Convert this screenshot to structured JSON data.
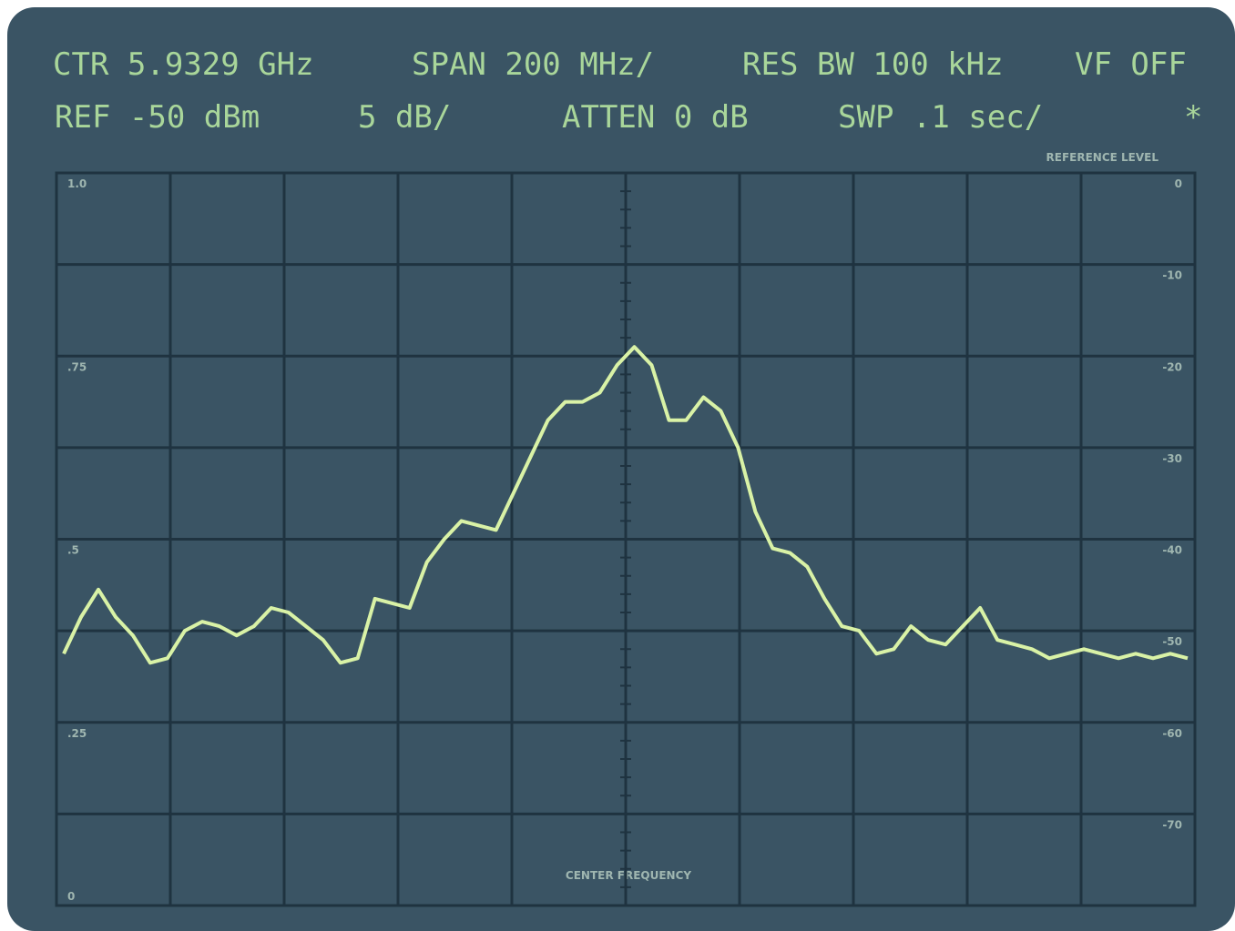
{
  "chart_data": {
    "type": "line",
    "header": [
      [
        "CTR 5.9329 GHz",
        "SPAN 200 MHz/",
        "RES BW 100 kHz",
        "VF OFF"
      ],
      [
        "REF -50 dBm",
        "5 dB/",
        "ATTEN 0 dB",
        "SWP .1 sec/",
        "*"
      ]
    ],
    "y2_label": "REFERENCE LEVEL",
    "x_label": "CENTER FREQUENCY",
    "ylim": [
      0,
      1
    ],
    "yticks": [
      {
        "value": 1,
        "label": "1.0"
      },
      {
        "value": 0.75,
        "label": ".75"
      },
      {
        "value": 0.5,
        "label": ".5"
      },
      {
        "value": 0.25,
        "label": ".25"
      },
      0
    ],
    "y2lim": [
      -80,
      0
    ],
    "y2ticks": [
      0,
      -10,
      -20,
      -30,
      -40,
      -50,
      -60,
      -70
    ],
    "grid": true,
    "series": [
      {
        "color": "#d9f2a6",
        "axis": "y2",
        "values": [
          -52.5,
          -48.5,
          -45.5,
          -48.5,
          -50.5,
          -53.5,
          -53,
          -50,
          -49,
          -49.5,
          -50.5,
          -49.5,
          -47.5,
          -48,
          -49.5,
          -51,
          -53.5,
          -53,
          -46.5,
          -47,
          -47.5,
          -42.5,
          -40,
          -38,
          -38.5,
          -39,
          -35,
          -31,
          -27,
          -25,
          -25,
          -24,
          -21,
          -19,
          -21,
          -27,
          -27,
          -24.5,
          -26,
          -30,
          -37,
          -41,
          -41.5,
          -43,
          -46.5,
          -49.5,
          -50,
          -52.5,
          -52,
          -49.5,
          -51,
          -51.5,
          -49.5,
          -47.5,
          -51,
          -51.5,
          -52,
          -53,
          -52.5,
          -52,
          -52.5,
          -53,
          -52.5,
          -53,
          -52.5,
          -53
        ]
      }
    ]
  }
}
